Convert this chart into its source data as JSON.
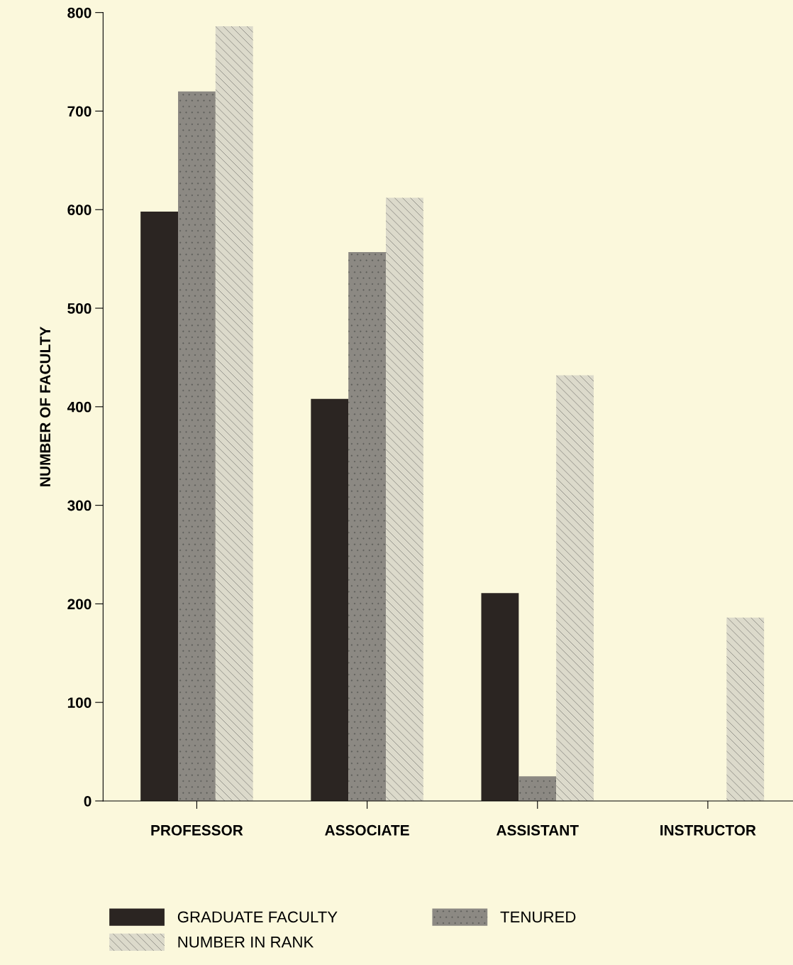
{
  "chart_data": {
    "type": "bar",
    "ylabel": "NUMBER OF FACULTY",
    "categories": [
      "PROFESSOR",
      "ASSOCIATE",
      "ASSISTANT",
      "INSTRUCTOR"
    ],
    "series": [
      {
        "name": "GRADUATE FACULTY",
        "color": "#2b2522",
        "values": [
          598,
          408,
          211,
          null
        ]
      },
      {
        "name": "TENURED",
        "color": "#8c8983",
        "values": [
          720,
          557,
          25,
          null
        ]
      },
      {
        "name": "NUMBER IN RANK",
        "color": "#dcdacb",
        "values": [
          786,
          612,
          432,
          186
        ]
      }
    ],
    "ylim": [
      0,
      800
    ],
    "yticks": [
      0,
      100,
      200,
      300,
      400,
      500,
      600,
      700,
      800
    ],
    "grid": false,
    "legend": "bottom"
  }
}
